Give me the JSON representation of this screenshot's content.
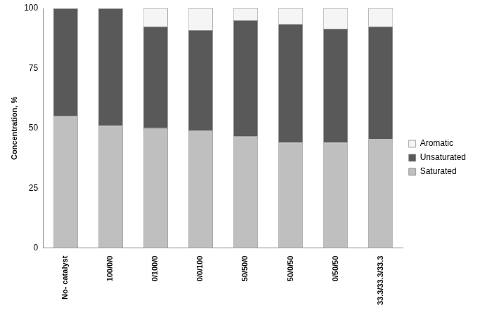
{
  "chart_data": {
    "type": "bar",
    "stacked": true,
    "orientation": "vertical",
    "y_label": "Concentration, %",
    "categories": [
      "No- catalyst",
      "100/0/0",
      "0/100/0",
      "0/0/100",
      "50/50/0",
      "50/0/50",
      "0/50/50",
      "33.3/33.3/33.3"
    ],
    "series": [
      {
        "name": "Saturated",
        "color": "#bfbfbf",
        "values": [
          55,
          51,
          50,
          49,
          46.5,
          44,
          44,
          45.5
        ]
      },
      {
        "name": "Unsaturated",
        "color": "#595959",
        "values": [
          45,
          49,
          42.5,
          42,
          48.5,
          49.5,
          47.5,
          47
        ]
      },
      {
        "name": "Aromatic",
        "color": "#f5f5f5",
        "values": [
          0,
          0,
          7.5,
          9,
          5,
          6.5,
          8.5,
          7.5
        ]
      }
    ],
    "ylim": [
      0,
      100
    ],
    "yticks": [
      0,
      25,
      50,
      75,
      100
    ],
    "grid": false,
    "legend": "right"
  }
}
